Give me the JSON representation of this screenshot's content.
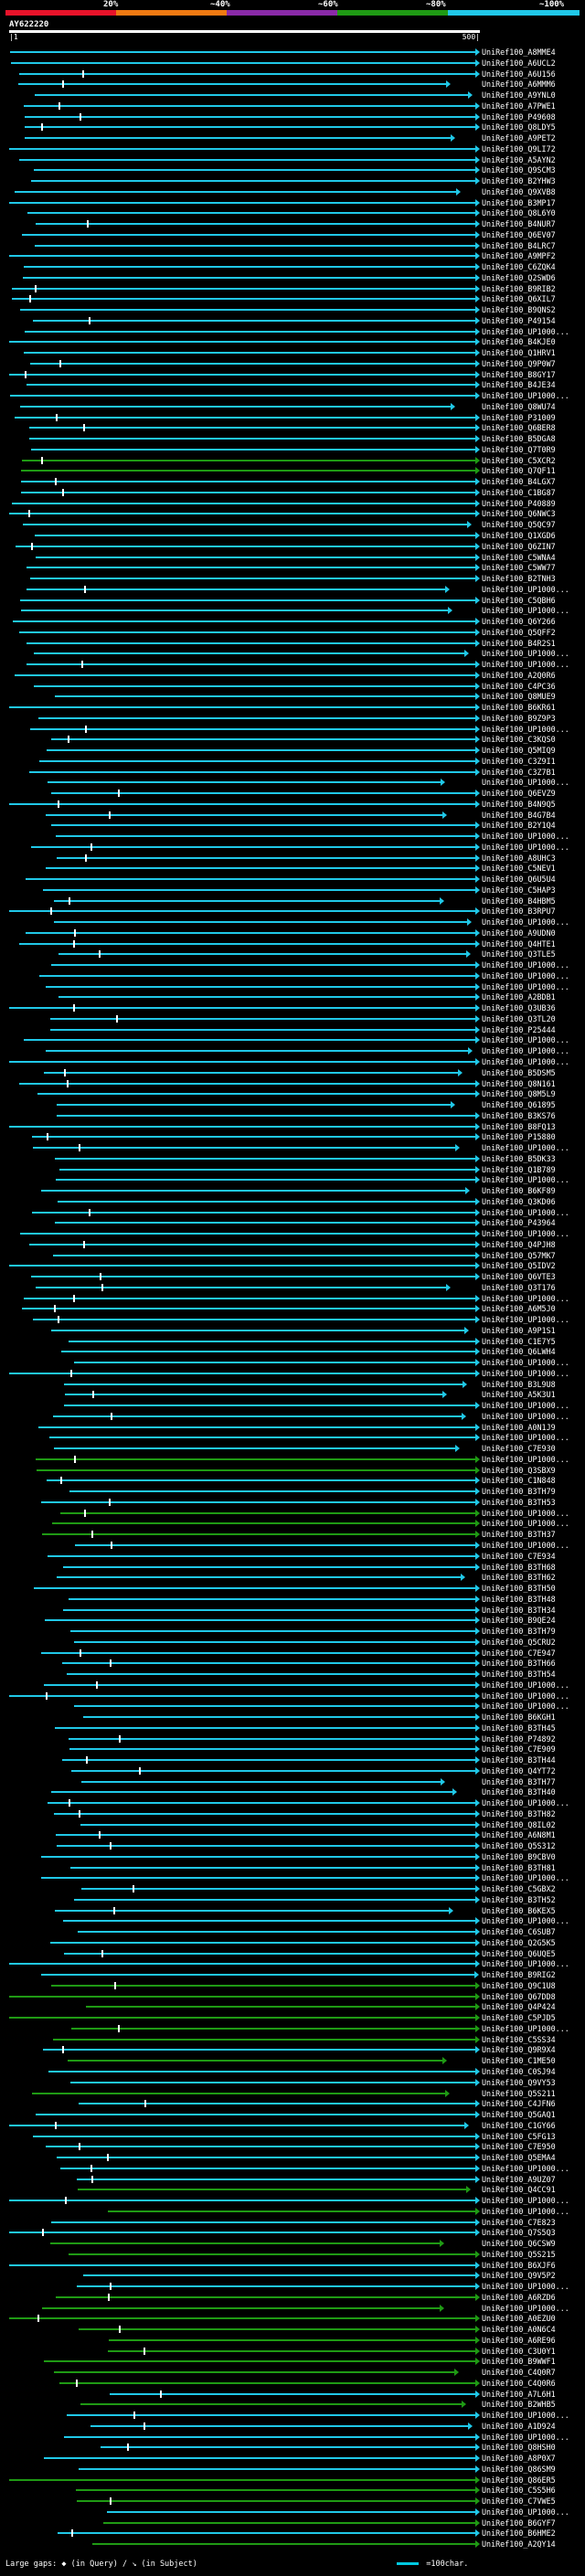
{
  "scale": {
    "labels": [
      "20%",
      "~40%",
      "~60%",
      "~80%",
      "~100%"
    ],
    "colors": [
      "#e8132a",
      "#f07a12",
      "#8a2aa8",
      "#1f9a14",
      "#20c8e8"
    ]
  },
  "query": {
    "name": "AY622220",
    "start_label": "|1",
    "end_label": "500|",
    "length": 500
  },
  "hits": [
    "UniRef100_A8MME4",
    "UniRef100_A6UCL2",
    "UniRef100_A6U156",
    "UniRef100_A6MMM6",
    "UniRef100_A9YNL0",
    "UniRef100_A7PWE1",
    "UniRef100_P49608",
    "UniRef100_Q8LDY5",
    "UniRef100_A9PET2",
    "UniRef100_Q9LI72",
    "UniRef100_A5AYN2",
    "UniRef100_Q9SCM3",
    "UniRef100_B2YHW3",
    "UniRef100_Q9XVB8",
    "UniRef100_B3MP17",
    "UniRef100_Q8L6Y0",
    "UniRef100_B4NUR7",
    "UniRef100_Q6EV07",
    "UniRef100_B4LRC7",
    "UniRef100_A9MPF2",
    "UniRef100_C6ZQK4",
    "UniRef100_Q2SWD6",
    "UniRef100_B9RIB2",
    "UniRef100_Q6XIL7",
    "UniRef100_B9QNS2",
    "UniRef100_P49154",
    "UniRef100_UP1000...",
    "UniRef100_B4KJE0",
    "UniRef100_Q1HRV1",
    "UniRef100_Q9P0W7",
    "UniRef100_B8GY17",
    "UniRef100_B4JE34",
    "UniRef100_UP1000...",
    "UniRef100_Q8WU74",
    "UniRef100_P31009",
    "UniRef100_Q6BER8",
    "UniRef100_B5DGA8",
    "UniRef100_Q7T0R9",
    "UniRef100_C5XCR2",
    "UniRef100_Q7QF11",
    "UniRef100_B4LGX7",
    "UniRef100_C1BG87",
    "UniRef100_P40889",
    "UniRef100_Q6NWC3",
    "UniRef100_Q5QC97",
    "UniRef100_Q1XGD6",
    "UniRef100_Q6ZIN7",
    "UniRef100_C5WNA4",
    "UniRef100_C5WW77",
    "UniRef100_B2TNH3",
    "UniRef100_UP1000...",
    "UniRef100_C5QBH6",
    "UniRef100_UP1000...",
    "UniRef100_Q6Y266",
    "UniRef100_Q5QFF2",
    "UniRef100_B4R2S1",
    "UniRef100_UP1000...",
    "UniRef100_UP1000...",
    "UniRef100_A2Q0R6",
    "UniRef100_C4PC36",
    "UniRef100_Q8MUE9",
    "UniRef100_B6KR61",
    "UniRef100_B9Z9P3",
    "UniRef100_UP1000...",
    "UniRef100_C3KQS0",
    "UniRef100_Q5MIQ9",
    "UniRef100_C3Z9I1",
    "UniRef100_C3Z7B1",
    "UniRef100_UP1000...",
    "UniRef100_Q6EVZ9",
    "UniRef100_B4N9Q5",
    "UniRef100_B4G7B4",
    "UniRef100_B2Y1Q4",
    "UniRef100_UP1000...",
    "UniRef100_UP1000...",
    "UniRef100_A8UHC3",
    "UniRef100_C5NEV1",
    "UniRef100_Q6U5U4",
    "UniRef100_C5HAP3",
    "UniRef100_B4HBM5",
    "UniRef100_B3RPU7",
    "UniRef100_UP1000...",
    "UniRef100_A9UDN0",
    "UniRef100_Q4HTE1",
    "UniRef100_Q3TLE5",
    "UniRef100_UP1000...",
    "UniRef100_UP1000...",
    "UniRef100_UP1000...",
    "UniRef100_A2BDB1",
    "UniRef100_Q3UB36",
    "UniRef100_Q3TL20",
    "UniRef100_P25444",
    "UniRef100_UP1000...",
    "UniRef100_UP1000...",
    "UniRef100_UP1000...",
    "UniRef100_B5DSM5",
    "UniRef100_Q8N161",
    "UniRef100_Q8M5L9",
    "UniRef100_Q61895",
    "UniRef100_B3KS76",
    "UniRef100_B8FQ13",
    "UniRef100_P15880",
    "UniRef100_UP1000...",
    "UniRef100_B5DK33",
    "UniRef100_Q1B789",
    "UniRef100_UP1000...",
    "UniRef100_B6KF89",
    "UniRef100_Q3KD06",
    "UniRef100_UP1000...",
    "UniRef100_P43964",
    "UniRef100_UP1000...",
    "UniRef100_Q4PJH8",
    "UniRef100_Q57MK7",
    "UniRef100_Q5IDV2",
    "UniRef100_Q6VTE3",
    "UniRef100_Q3T176",
    "UniRef100_UP1000...",
    "UniRef100_A6M5J0",
    "UniRef100_UP1000...",
    "UniRef100_A9P1S1",
    "UniRef100_C1E7Y5",
    "UniRef100_Q6LWH4",
    "UniRef100_UP1000...",
    "UniRef100_UP1000...",
    "UniRef100_B3L9U8",
    "UniRef100_A5K3U1",
    "UniRef100_UP1000...",
    "UniRef100_UP1000...",
    "UniRef100_A0N1J9",
    "UniRef100_UP1000...",
    "UniRef100_C7E930",
    "UniRef100_UP1000...",
    "UniRef100_Q3SBX9",
    "UniRef100_C1N848",
    "UniRef100_B3TH79",
    "UniRef100_B3TH53",
    "UniRef100_UP1000...",
    "UniRef100_UP1000...",
    "UniRef100_B3TH37",
    "UniRef100_UP1000...",
    "UniRef100_C7E934",
    "UniRef100_B3TH68",
    "UniRef100_B3TH62",
    "UniRef100_B3TH50",
    "UniRef100_B3TH48",
    "UniRef100_B3TH34",
    "UniRef100_B9QE24",
    "UniRef100_B3TH79",
    "UniRef100_Q5CRU2",
    "UniRef100_C7E947",
    "UniRef100_B3TH66",
    "UniRef100_B3TH54",
    "UniRef100_UP1000...",
    "UniRef100_UP1000...",
    "UniRef100_UP1000...",
    "UniRef100_B6KGH1",
    "UniRef100_B3TH45",
    "UniRef100_P74892",
    "UniRef100_C7E909",
    "UniRef100_B3TH44",
    "UniRef100_Q4YT72",
    "UniRef100_B3TH77",
    "UniRef100_B3TH40",
    "UniRef100_UP1000...",
    "UniRef100_B3TH82",
    "UniRef100_Q8IL02",
    "UniRef100_A6N8M1",
    "UniRef100_Q5S312",
    "UniRef100_B9CBV0",
    "UniRef100_B3TH81",
    "UniRef100_UP1000...",
    "UniRef100_C5GBX2",
    "UniRef100_B3TH52",
    "UniRef100_B6KEX5",
    "UniRef100_UP1000...",
    "UniRef100_C6SUB7",
    "UniRef100_Q2G5K5",
    "UniRef100_Q6UQE5",
    "UniRef100_UP1000...",
    "UniRef100_B9RIG2",
    "UniRef100_Q9C1U8",
    "UniRef100_Q67DD8",
    "UniRef100_Q4P424",
    "UniRef100_C5PJD5",
    "UniRef100_UP1000...",
    "UniRef100_C5SS34",
    "UniRef100_Q9R9X4",
    "UniRef100_C1ME50",
    "UniRef100_C0SJ94",
    "UniRef100_Q9VY53",
    "UniRef100_Q5S211",
    "UniRef100_C4JFN6",
    "UniRef100_Q5GAQ1",
    "UniRef100_C1GY66",
    "UniRef100_C5FG13",
    "UniRef100_C7E950",
    "UniRef100_Q5EMA4",
    "UniRef100_UP1000...",
    "UniRef100_A9UZ07",
    "UniRef100_Q4CC91",
    "UniRef100_UP1000...",
    "UniRef100_UP1000...",
    "UniRef100_C7E823",
    "UniRef100_Q7S5Q3",
    "UniRef100_Q6CSW9",
    "UniRef100_Q5S215",
    "UniRef100_B6XJF6",
    "UniRef100_Q9V5P2",
    "UniRef100_UP1000...",
    "UniRef100_A6RZD6",
    "UniRef100_UP1000...",
    "UniRef100_A0EZU0",
    "UniRef100_A0N6C4",
    "UniRef100_A6RE96",
    "UniRef100_C3U0Y1",
    "UniRef100_B9WWF1",
    "UniRef100_C4Q0R7",
    "UniRef100_C4Q0R6",
    "UniRef100_A7L6H1",
    "UniRef100_B2WHB5",
    "UniRef100_UP1000...",
    "UniRef100_A1D924",
    "UniRef100_UP1000...",
    "UniRef100_Q8HSH0",
    "UniRef100_A8P0X7",
    "UniRef100_Q86SM9",
    "UniRef100_Q86ER5",
    "UniRef100_C5S5H6",
    "UniRef100_C7VWE5",
    "UniRef100_UP1000...",
    "UniRef100_B6GYF7",
    "UniRef100_B6HME2",
    "UniRef100_A2QY14"
  ],
  "legend": {
    "prefix": "Large gaps:",
    "query_gap": "(in Query)",
    "subject_gap": "(in Subject)",
    "unit": "=100char."
  }
}
